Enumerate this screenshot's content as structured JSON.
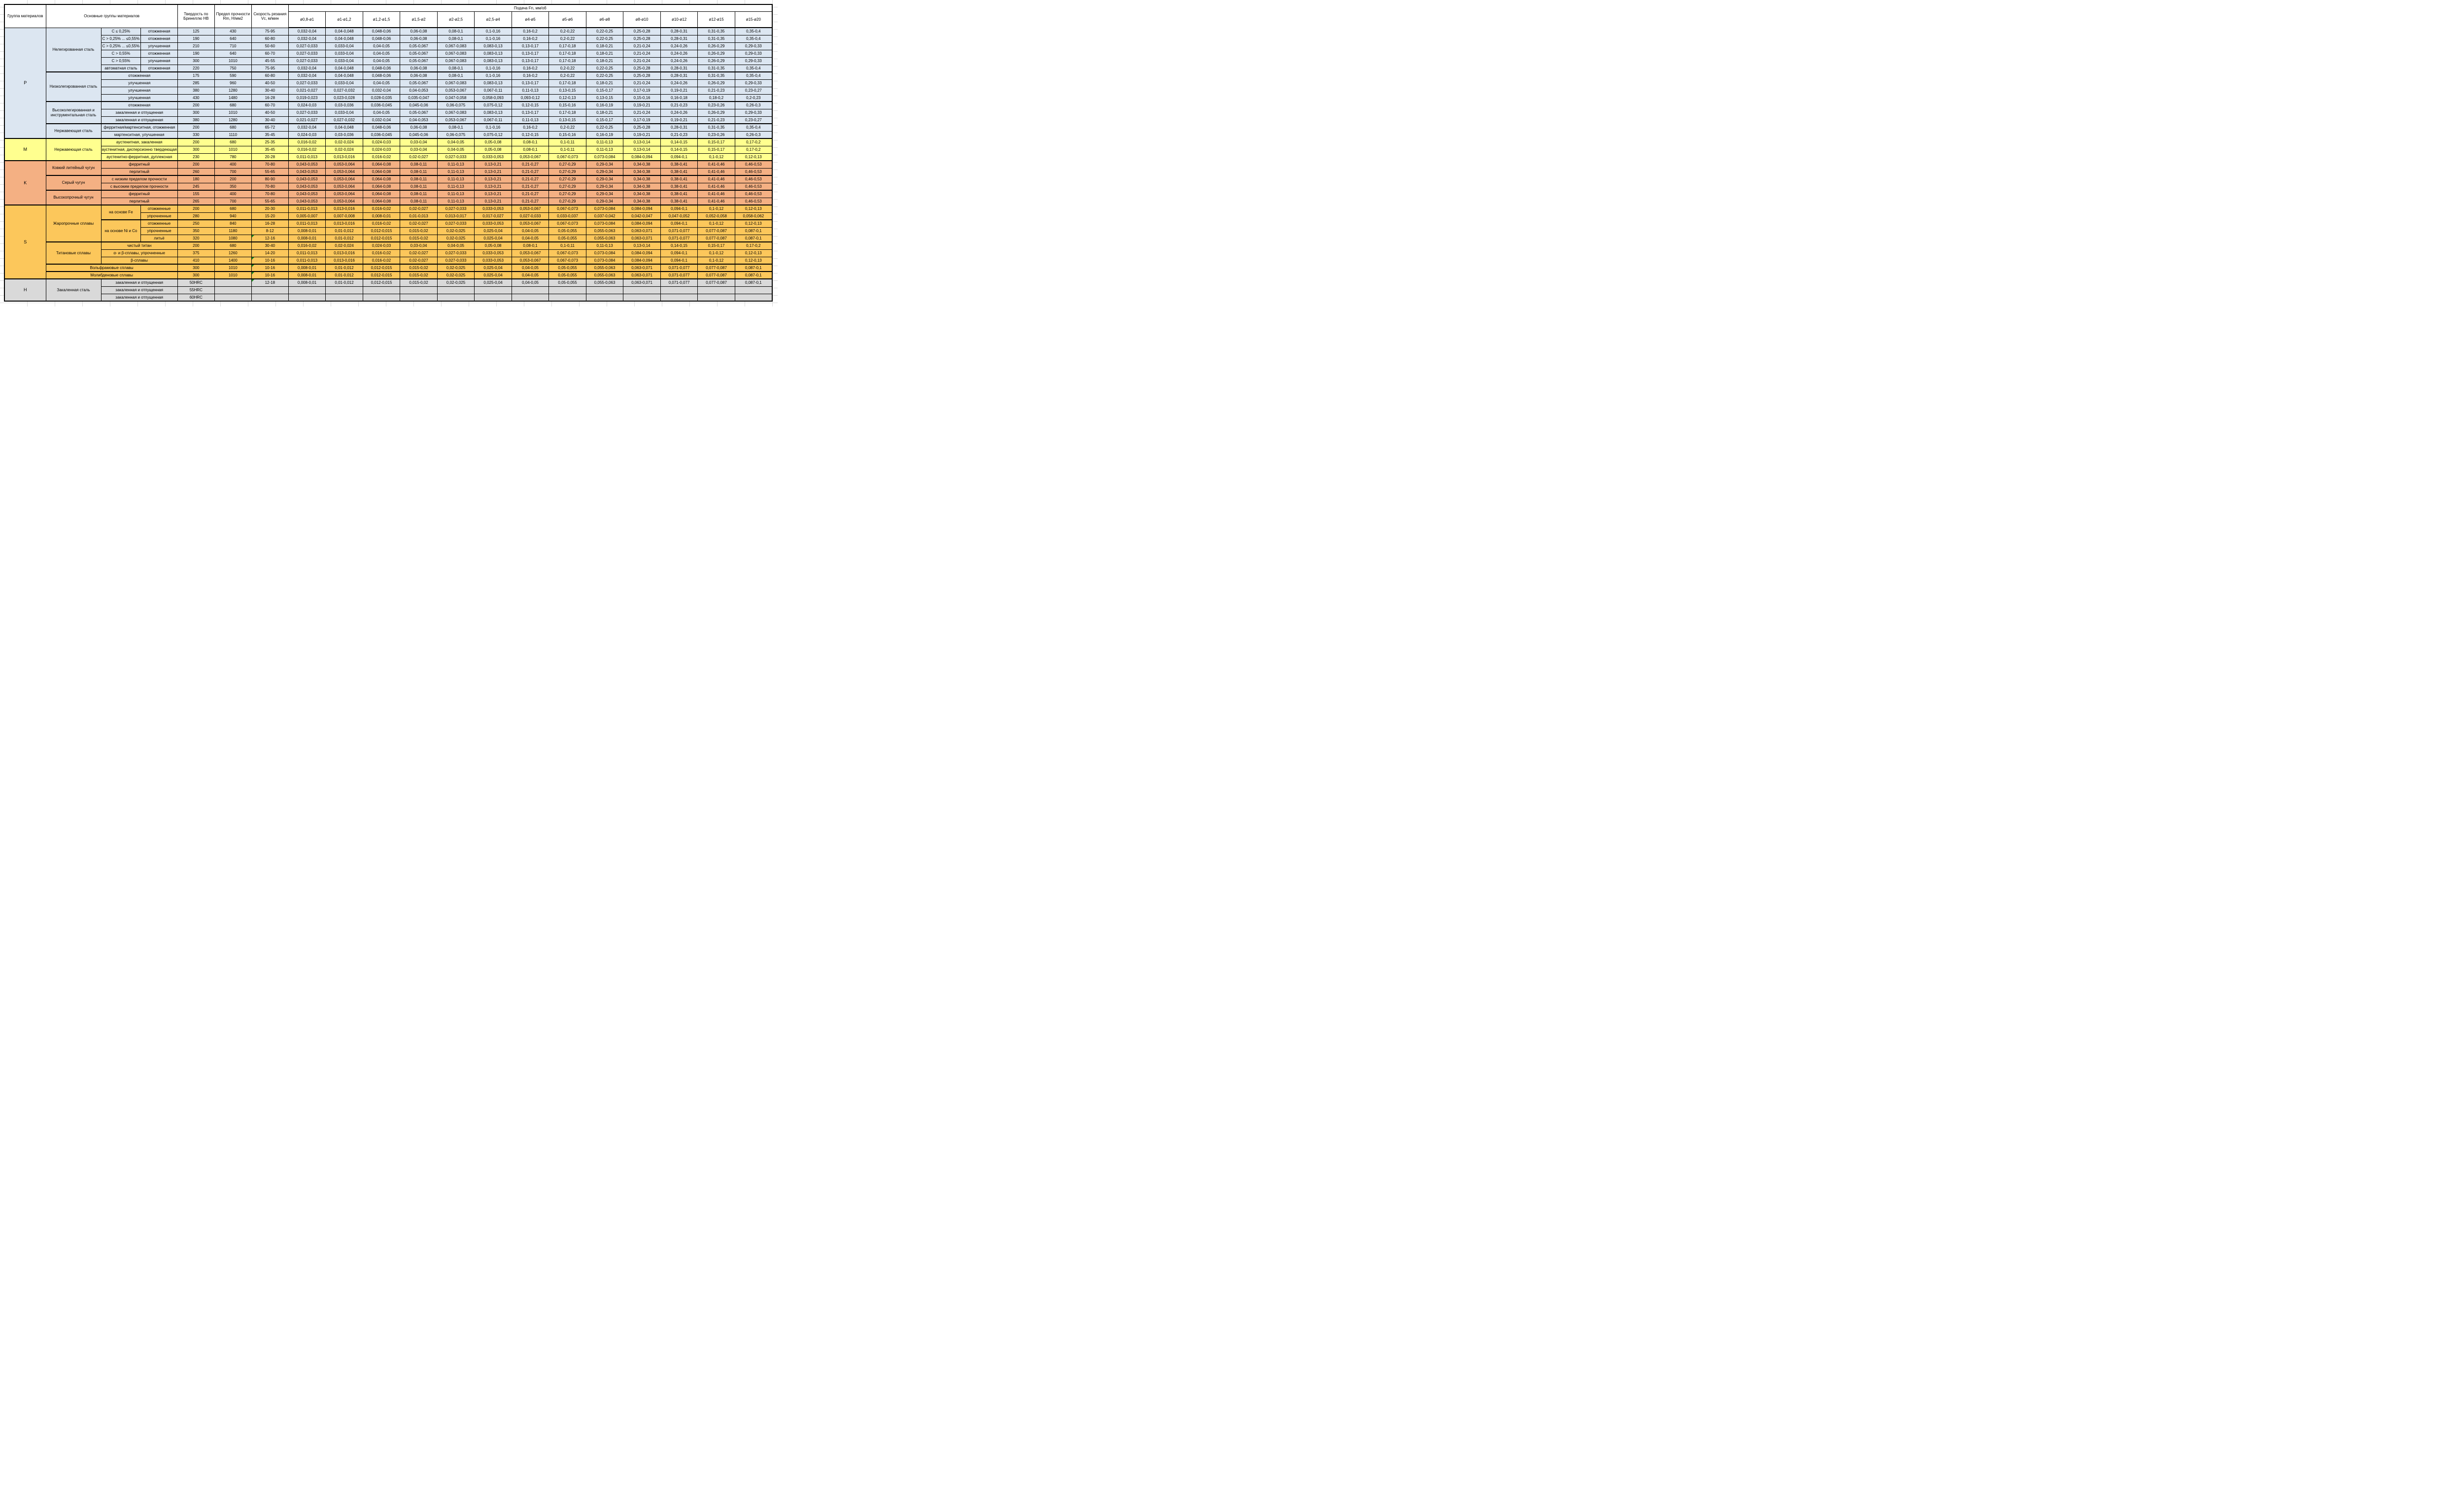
{
  "colors": {
    "group_p_fill": "#DCE6F1",
    "group_m_fill": "#FFFF8F",
    "group_k_fill": "#F4B083",
    "group_s_fill": "#FCC75B",
    "group_h_fill": "#D9D9D9",
    "border": "#000000",
    "error_flag_green": "#1E8F1E"
  },
  "table": {
    "header": {
      "top": [
        {
          "t": "Группа материалов",
          "rs": 2,
          "cs": 1
        },
        {
          "t": "Основные группы материалов",
          "rs": 2,
          "cs": 3
        },
        {
          "t": "Твердость по Бринеллю HB",
          "rs": 2,
          "cs": 1
        },
        {
          "t": "Предел прочности Rm, Н/мм2",
          "rs": 2,
          "cs": 1
        },
        {
          "t": "Скорость резания Vc, м/мин",
          "rs": 2,
          "cs": 1
        },
        {
          "t": "Подача Fn, мм/об",
          "rs": 1,
          "cs": 13
        }
      ],
      "feed_cols": [
        "ø0,8-ø1",
        "ø1-ø1,2",
        "ø1,2-ø1,5",
        "ø1,5-ø2",
        "ø2-ø2,5",
        "ø2,5-ø4",
        "ø4-ø5",
        "ø5-ø6",
        "ø6-ø8",
        "ø8-ø10",
        "ø10-ø12",
        "ø12-ø15",
        "ø15-ø20"
      ]
    },
    "feed_sets": {
      "A": [
        "0,032-0,04",
        "0,04-0,048",
        "0,048-0,06",
        "0,06-0,08",
        "0,08-0,1",
        "0,1-0,16",
        "0,16-0,2",
        "0,2-0,22",
        "0,22-0,25",
        "0,25-0,28",
        "0,28-0,31",
        "0,31-0,35",
        "0,35-0,4"
      ],
      "B": [
        "0,027-0,033",
        "0,033-0,04",
        "0,04-0,05",
        "0,05-0,067",
        "0,067-0,083",
        "0,083-0,13",
        "0,13-0,17",
        "0,17-0,18",
        "0,18-0,21",
        "0,21-0,24",
        "0,24-0,26",
        "0,26-0,29",
        "0,29-0,33"
      ],
      "C": [
        "0,021-0,027",
        "0,027-0,032",
        "0,032-0,04",
        "0,04-0,053",
        "0,053-0,067",
        "0,067-0,11",
        "0,11-0,13",
        "0,13-0,15",
        "0,15-0,17",
        "0,17-0,19",
        "0,19-0,21",
        "0,21-0,23",
        "0,23-0,27"
      ],
      "D": [
        "0,019-0,023",
        "0,023-0,028",
        "0,028-0,035",
        "0,035-0,047",
        "0,047-0,058",
        "0,058-0,093",
        "0,093-0,12",
        "0,12-0,13",
        "0,13-0,15",
        "0,15-0,16",
        "0,16-0,18",
        "0,18-0,2",
        "0,2-0,23"
      ],
      "E": [
        "0,024-0,03",
        "0,03-0,036",
        "0,036-0,045",
        "0,045-0,06",
        "0,06-0,075",
        "0,075-0,12",
        "0,12-0,15",
        "0,15-0,16",
        "0,16-0,19",
        "0,19-0,21",
        "0,21-0,23",
        "0,23-0,26",
        "0,26-0,3"
      ],
      "F": [
        "0,016-0,02",
        "0,02-0,024",
        "0,024-0,03",
        "0,03-0,04",
        "0,04-0,05",
        "0,05-0,08",
        "0,08-0,1",
        "0,1-0,11",
        "0,11-0,13",
        "0,13-0,14",
        "0,14-0,15",
        "0,15-0,17",
        "0,17-0,2"
      ],
      "G": [
        "0,011-0,013",
        "0,013-0,016",
        "0,016-0,02",
        "0,02-0,027",
        "0,027-0,033",
        "0,033-0,053",
        "0,053-0,067",
        "0,067-0,073",
        "0,073-0,084",
        "0,084-0,094",
        "0,094-0,1",
        "0,1-0,12",
        "0,12-0,13"
      ],
      "H": [
        "0,043-0,053",
        "0,053-0,064",
        "0,064-0,08",
        "0,08-0,11",
        "0,11-0,13",
        "0,13-0,21",
        "0,21-0,27",
        "0,27-0,29",
        "0,29-0,34",
        "0,34-0,38",
        "0,38-0,41",
        "0,41-0,46",
        "0,46-0,53"
      ],
      "I": [
        "0,005-0,007",
        "0,007-0,008",
        "0,008-0,01",
        "0,01-0,013",
        "0,013-0,017",
        "0,017-0,027",
        "0,027-0,033",
        "0,033-0,037",
        "0,037-0,042",
        "0,042-0,047",
        "0,047-0,052",
        "0,052-0,058",
        "0,058-0,062"
      ],
      "J": [
        "0,008-0,01",
        "0,01-0,012",
        "0,012-0,015",
        "0,015-0,02",
        "0,02-0,025",
        "0,025-0,04",
        "0,04-0,05",
        "0,05-0,055",
        "0,055-0,063",
        "0,063-0,071",
        "0,071-0,077",
        "0,077-0,087",
        "0,087-0,1"
      ],
      "EMPTY": [
        "",
        "",
        "",
        "",
        "",
        "",
        "",
        "",
        "",
        "",
        "",
        "",
        ""
      ]
    },
    "rows": [
      {
        "cls": "p",
        "lead": [
          {
            "t": "P",
            "rs": 15,
            "k": "grp"
          },
          {
            "t": "Нелегированная сталь",
            "rs": 6,
            "k": "mat"
          },
          {
            "t": "C ≤ 0,25%",
            "k": "sub"
          },
          {
            "t": "отожженная",
            "k": "sub"
          }
        ],
        "hb": "125",
        "rm": "430",
        "vc": "75-95",
        "feeds": "A"
      },
      {
        "cls": "p",
        "lead": [
          {
            "t": "C > 0,25% ... ≤0,55%",
            "k": "sub"
          },
          {
            "t": "отожженная",
            "k": "sub"
          }
        ],
        "hb": "190",
        "rm": "640",
        "vc": "60-80",
        "feeds": "A"
      },
      {
        "cls": "p",
        "lead": [
          {
            "t": "C > 0,25% ... ≤0,55%",
            "k": "sub"
          },
          {
            "t": "улучшенная",
            "k": "sub"
          }
        ],
        "hb": "210",
        "rm": "710",
        "vc": "50-60",
        "feeds": "B"
      },
      {
        "cls": "p",
        "lead": [
          {
            "t": "C > 0,55%",
            "k": "sub"
          },
          {
            "t": "отожженная",
            "k": "sub"
          }
        ],
        "hb": "190",
        "rm": "640",
        "vc": "60-70",
        "feeds": "B"
      },
      {
        "cls": "p",
        "lead": [
          {
            "t": "C > 0,55%",
            "k": "sub"
          },
          {
            "t": "улучшенная",
            "k": "sub"
          }
        ],
        "hb": "300",
        "rm": "1010",
        "vc": "45-55",
        "feeds": "B"
      },
      {
        "cls": "p",
        "lead": [
          {
            "t": "автоматная сталь",
            "k": "sub"
          },
          {
            "t": "отожженная",
            "k": "sub"
          }
        ],
        "hb": "220",
        "rm": "750",
        "vc": "75-95",
        "feeds": "A"
      },
      {
        "cls": "p sec",
        "lead": [
          {
            "t": "Низколегированная сталь",
            "rs": 4,
            "k": "mat"
          },
          {
            "t": "отожженная",
            "cs": 2,
            "k": "sub"
          }
        ],
        "hb": "175",
        "rm": "590",
        "vc": "60-80",
        "feeds": "A"
      },
      {
        "cls": "p",
        "lead": [
          {
            "t": "улучшенная",
            "cs": 2,
            "k": "sub"
          }
        ],
        "hb": "285",
        "rm": "960",
        "vc": "40-50",
        "feeds": "B"
      },
      {
        "cls": "p",
        "lead": [
          {
            "t": "улучшенная",
            "cs": 2,
            "k": "sub"
          }
        ],
        "hb": "380",
        "rm": "1280",
        "vc": "30-40",
        "feeds": "C"
      },
      {
        "cls": "p",
        "lead": [
          {
            "t": "улучшенная",
            "cs": 2,
            "k": "sub"
          }
        ],
        "hb": "430",
        "rm": "1480",
        "vc": "16-28",
        "feeds": "D"
      },
      {
        "cls": "p sec",
        "lead": [
          {
            "t": "Высоколегированная и инструментальная сталь",
            "rs": 3,
            "k": "mat"
          },
          {
            "t": "отожженная",
            "cs": 2,
            "k": "sub"
          }
        ],
        "hb": "200",
        "rm": "680",
        "vc": "60-70",
        "feeds": "E"
      },
      {
        "cls": "p",
        "lead": [
          {
            "t": "закаленная и отпущенная",
            "cs": 2,
            "k": "sub"
          }
        ],
        "hb": "300",
        "rm": "1010",
        "vc": "40-50",
        "feeds": "B"
      },
      {
        "cls": "p",
        "lead": [
          {
            "t": "закаленная и отпущенная",
            "cs": 2,
            "k": "sub"
          }
        ],
        "hb": "380",
        "rm": "1280",
        "vc": "30-40",
        "feeds": "C"
      },
      {
        "cls": "p sec",
        "lead": [
          {
            "t": "Нержавеющая сталь",
            "rs": 2,
            "k": "mat"
          },
          {
            "t": "ферритная/мартенситная, отожженная",
            "cs": 2,
            "k": "sub"
          }
        ],
        "hb": "200",
        "rm": "680",
        "vc": "65-72",
        "feeds": "A"
      },
      {
        "cls": "p",
        "lead": [
          {
            "t": "мартенситная, улучшенная",
            "cs": 2,
            "k": "sub"
          }
        ],
        "hb": "330",
        "rm": "1110",
        "vc": "35-45",
        "feeds": "E"
      },
      {
        "cls": "m sec",
        "lead": [
          {
            "t": "M",
            "rs": 3,
            "k": "grp"
          },
          {
            "t": "Нержавеющая сталь",
            "rs": 3,
            "k": "mat"
          },
          {
            "t": "аустенитная, закаленная",
            "cs": 2,
            "k": "sub"
          }
        ],
        "hb": "200",
        "rm": "680",
        "vc": "25-35",
        "feeds": "F"
      },
      {
        "cls": "m",
        "lead": [
          {
            "t": "аустенитная, дисперсионно твердеющая",
            "cs": 2,
            "k": "sub"
          }
        ],
        "hb": "300",
        "rm": "1010",
        "vc": "35-45",
        "feeds": "F"
      },
      {
        "cls": "m",
        "lead": [
          {
            "t": "аустенитно-ферритная, дуплексная",
            "cs": 2,
            "k": "sub"
          }
        ],
        "hb": "230",
        "rm": "780",
        "vc": "20-28",
        "feeds": "G"
      },
      {
        "cls": "k sec",
        "lead": [
          {
            "t": "K",
            "rs": 6,
            "k": "grp"
          },
          {
            "t": "Ковкий литейный чугун",
            "rs": 2,
            "k": "mat"
          },
          {
            "t": "ферритный",
            "cs": 2,
            "k": "sub"
          }
        ],
        "hb": "200",
        "rm": "400",
        "vc": "70-80",
        "feeds": "H"
      },
      {
        "cls": "k",
        "lead": [
          {
            "t": "перлитный",
            "cs": 2,
            "k": "sub"
          }
        ],
        "hb": "260",
        "rm": "700",
        "vc": "55-65",
        "feeds": "H"
      },
      {
        "cls": "k sec",
        "lead": [
          {
            "t": "Серый чугун",
            "rs": 2,
            "k": "mat"
          },
          {
            "t": "с низким пределом прочности",
            "cs": 2,
            "k": "sub"
          }
        ],
        "hb": "180",
        "rm": "200",
        "vc": "80-90",
        "feeds": "H"
      },
      {
        "cls": "k",
        "lead": [
          {
            "t": "с высоким пределом прочности",
            "cs": 2,
            "k": "sub"
          }
        ],
        "hb": "245",
        "rm": "350",
        "vc": "70-80",
        "feeds": "H"
      },
      {
        "cls": "k sec",
        "lead": [
          {
            "t": "Высокопрочный чугун",
            "rs": 2,
            "k": "mat"
          },
          {
            "t": "ферритный",
            "cs": 2,
            "k": "sub"
          }
        ],
        "hb": "155",
        "rm": "400",
        "vc": "70-80",
        "feeds": "H"
      },
      {
        "cls": "k",
        "lead": [
          {
            "t": "перлитный",
            "cs": 2,
            "k": "sub"
          }
        ],
        "hb": "265",
        "rm": "700",
        "vc": "55-65",
        "feeds": "H"
      },
      {
        "cls": "s sec",
        "lead": [
          {
            "t": "S",
            "rs": 10,
            "k": "grp"
          },
          {
            "t": "Жаропрочные сплавы",
            "rs": 5,
            "k": "mat"
          },
          {
            "t": "на основе Fe",
            "rs": 2,
            "k": "sub"
          },
          {
            "t": "отожженные",
            "k": "sub"
          }
        ],
        "hb": "200",
        "rm": "680",
        "vc": "20-30",
        "feeds": "G"
      },
      {
        "cls": "s",
        "lead": [
          {
            "t": "упрочненные",
            "k": "sub"
          }
        ],
        "hb": "280",
        "rm": "940",
        "vc": "15-20",
        "feeds": "I"
      },
      {
        "cls": "s sec",
        "lead": [
          {
            "t": "на основе Ni и Co",
            "rs": 3,
            "k": "sub"
          },
          {
            "t": "отожженные",
            "k": "sub"
          }
        ],
        "hb": "250",
        "rm": "840",
        "vc": "16-28",
        "feeds": "G"
      },
      {
        "cls": "s",
        "lead": [
          {
            "t": "упрочненные",
            "k": "sub"
          }
        ],
        "hb": "350",
        "rm": "1180",
        "vc": "8-12",
        "feeds": "J"
      },
      {
        "cls": "s",
        "lead": [
          {
            "t": "литьё",
            "k": "sub"
          }
        ],
        "hb": "320",
        "rm": "1080",
        "vc": "12-16",
        "flag": true,
        "feeds": "J"
      },
      {
        "cls": "s sec",
        "lead": [
          {
            "t": "Титановые сплавы",
            "rs": 3,
            "k": "mat"
          },
          {
            "t": "чистый титан",
            "cs": 2,
            "k": "sub"
          }
        ],
        "hb": "200",
        "rm": "680",
        "vc": "30-40",
        "feeds": "F"
      },
      {
        "cls": "s",
        "lead": [
          {
            "t": "α- и β-сплавы, упрочненные",
            "cs": 2,
            "k": "sub"
          }
        ],
        "hb": "375",
        "rm": "1260",
        "vc": "14-20",
        "feeds": "G"
      },
      {
        "cls": "s",
        "lead": [
          {
            "t": "β-сплавы",
            "cs": 2,
            "k": "sub"
          }
        ],
        "hb": "410",
        "rm": "1400",
        "vc": "10-16",
        "flag": true,
        "feeds": "G"
      },
      {
        "cls": "s sec",
        "lead": [
          {
            "t": "Вольфрамовые сплавы",
            "cs": 3,
            "k": "mat"
          }
        ],
        "hb": "300",
        "rm": "1010",
        "vc": "10-16",
        "flag": true,
        "feeds": "J"
      },
      {
        "cls": "s sec",
        "lead": [
          {
            "t": "Молибденовые сплавы",
            "cs": 3,
            "k": "mat"
          }
        ],
        "hb": "300",
        "rm": "1010",
        "vc": "10-16",
        "flag": true,
        "feeds": "J"
      },
      {
        "cls": "h sec",
        "lead": [
          {
            "t": "H",
            "rs": 3,
            "k": "grp"
          },
          {
            "t": "Закаленная сталь",
            "rs": 3,
            "k": "mat"
          },
          {
            "t": "закаленная и отпущенная",
            "cs": 2,
            "k": "sub"
          }
        ],
        "hb": "50HRC",
        "rm": "",
        "vc": "12-18",
        "flag": true,
        "feeds": "J"
      },
      {
        "cls": "h",
        "lead": [
          {
            "t": "закаленная и отпущенная",
            "cs": 2,
            "k": "sub"
          }
        ],
        "hb": "55HRC",
        "rm": "",
        "vc": "",
        "feeds": "EMPTY"
      },
      {
        "cls": "h",
        "lead": [
          {
            "t": "закаленная и отпущенная",
            "cs": 2,
            "k": "sub"
          }
        ],
        "hb": "60HRC",
        "rm": "",
        "vc": "",
        "feeds": "EMPTY"
      }
    ]
  }
}
